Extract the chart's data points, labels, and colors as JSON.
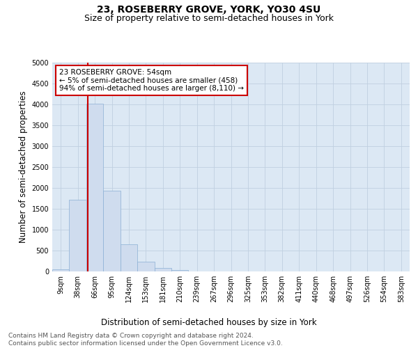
{
  "title": "23, ROSEBERRY GROVE, YORK, YO30 4SU",
  "subtitle": "Size of property relative to semi-detached houses in York",
  "xlabel": "Distribution of semi-detached houses by size in York",
  "ylabel": "Number of semi-detached properties",
  "bin_labels": [
    "9sqm",
    "38sqm",
    "66sqm",
    "95sqm",
    "124sqm",
    "153sqm",
    "181sqm",
    "210sqm",
    "239sqm",
    "267sqm",
    "296sqm",
    "325sqm",
    "353sqm",
    "382sqm",
    "411sqm",
    "440sqm",
    "468sqm",
    "497sqm",
    "526sqm",
    "554sqm",
    "583sqm"
  ],
  "bar_heights": [
    50,
    1720,
    4020,
    1940,
    650,
    240,
    80,
    40,
    0,
    0,
    0,
    0,
    0,
    0,
    0,
    0,
    0,
    0,
    0,
    0,
    0
  ],
  "bar_color": "#cfdcee",
  "bar_edgecolor": "#8bafd4",
  "vline_color": "#cc0000",
  "annotation_text": "23 ROSEBERRY GROVE: 54sqm\n← 5% of semi-detached houses are smaller (458)\n94% of semi-detached houses are larger (8,110) →",
  "annotation_box_facecolor": "#ffffff",
  "annotation_box_edgecolor": "#cc0000",
  "ylim": [
    0,
    5000
  ],
  "yticks": [
    0,
    500,
    1000,
    1500,
    2000,
    2500,
    3000,
    3500,
    4000,
    4500,
    5000
  ],
  "grid_color": "#c0d0e0",
  "background_color": "#dce8f4",
  "title_fontsize": 10,
  "subtitle_fontsize": 9,
  "axis_label_fontsize": 8.5,
  "tick_fontsize": 7,
  "annotation_fontsize": 7.5,
  "footer_fontsize": 6.5,
  "footer_text": "Contains HM Land Registry data © Crown copyright and database right 2024.\nContains public sector information licensed under the Open Government Licence v3.0."
}
